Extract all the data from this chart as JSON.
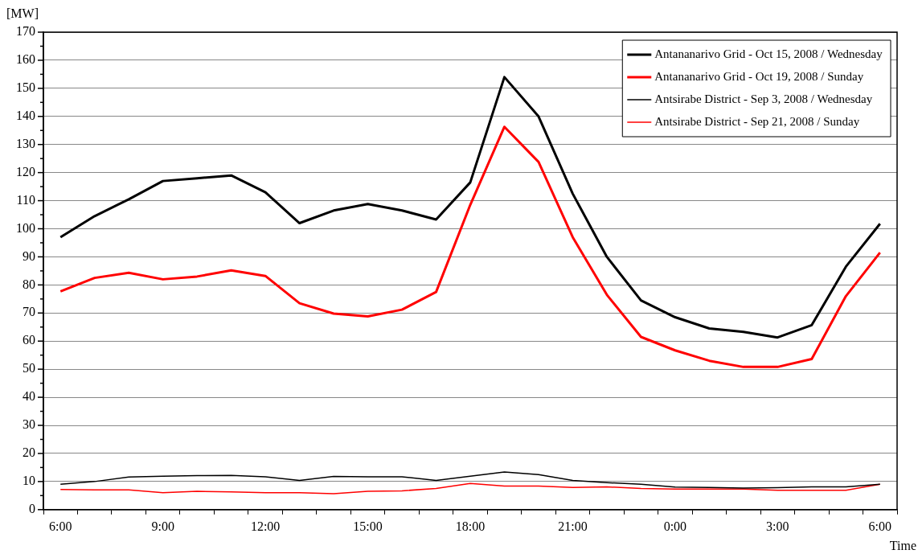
{
  "chart_data": {
    "type": "line",
    "ylabel": "[MW]",
    "xlabel": "Time",
    "categories": [
      "6:00",
      null,
      null,
      "9:00",
      null,
      null,
      "12:00",
      null,
      null,
      "15:00",
      null,
      null,
      "18:00",
      null,
      null,
      "21:00",
      null,
      null,
      "0:00",
      null,
      null,
      "3:00",
      null,
      null,
      "6:00"
    ],
    "series": [
      {
        "name": "Antananarivo Grid - Oct 15, 2008 / Wednesday",
        "color": "#000000",
        "values": [
          97,
          104.5,
          110.5,
          117,
          118,
          119,
          113,
          102,
          106.5,
          108.8,
          106.5,
          103.3,
          116.5,
          154,
          140,
          112.5,
          90,
          74.5,
          68.5,
          64.5,
          63.3,
          61.3,
          65.7,
          86.5,
          101.8
        ]
      },
      {
        "name": "Antananarivo Grid - Oct 19, 2008 / Sunday",
        "color": "#ff0000",
        "values": [
          77.7,
          82.5,
          84.3,
          82,
          83,
          85.2,
          83.2,
          73.5,
          69.8,
          68.8,
          71.2,
          77.5,
          108.5,
          136.3,
          123.8,
          97,
          76.5,
          61.5,
          56.7,
          53,
          50.8,
          50.8,
          53.6,
          76,
          91.5
        ]
      },
      {
        "name": "Antsirabe District - Sep 3, 2008 / Wednesday",
        "color": "#000000",
        "values": [
          9,
          10,
          11.6,
          11.9,
          12.1,
          12.2,
          11.7,
          10.4,
          11.8,
          11.7,
          11.7,
          10.4,
          11.9,
          13.4,
          12.5,
          10.4,
          9.6,
          9,
          8,
          7.9,
          7.7,
          7.8,
          8.1,
          8.1,
          9
        ]
      },
      {
        "name": "Antsirabe District - Sep 21, 2008 / Sunday",
        "color": "#ff0000",
        "values": [
          7.2,
          7,
          7,
          6,
          6.5,
          6.3,
          6,
          6,
          5.7,
          6.5,
          6.7,
          7.5,
          9.3,
          8.4,
          8.4,
          7.9,
          8.1,
          7.5,
          7.3,
          7.3,
          7.3,
          6.9,
          6.9,
          6.9,
          9
        ]
      }
    ],
    "ylim": [
      0,
      170
    ],
    "yticks": [
      0,
      {
        "value": 5,
        "label": null
      },
      10,
      {
        "value": 15,
        "label": null
      },
      20,
      {
        "value": 25,
        "label": null
      },
      30,
      {
        "value": 35,
        "label": null
      },
      40,
      {
        "value": 45,
        "label": null
      },
      50,
      {
        "value": 55,
        "label": null
      },
      60,
      {
        "value": 65,
        "label": null
      },
      70,
      {
        "value": 75,
        "label": null
      },
      80,
      {
        "value": 85,
        "label": null
      },
      90,
      {
        "value": 95,
        "label": null
      },
      100,
      {
        "value": 105,
        "label": null
      },
      110,
      {
        "value": 115,
        "label": null
      },
      120,
      {
        "value": 125,
        "label": null
      },
      130,
      {
        "value": 135,
        "label": null
      },
      140,
      {
        "value": 145,
        "label": null
      },
      150,
      {
        "value": 155,
        "label": null
      },
      160,
      {
        "value": 165,
        "label": null
      },
      170
    ],
    "grid": "y",
    "legend": "top right",
    "marker": "none",
    "line_style": "solid"
  }
}
